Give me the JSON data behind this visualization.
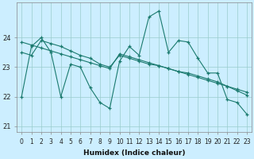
{
  "xlabel": "Humidex (Indice chaleur)",
  "bg_color": "#cceeff",
  "line_color": "#1a7a6e",
  "grid_color": "#99cccc",
  "x_values": [
    0,
    1,
    2,
    3,
    4,
    5,
    6,
    7,
    8,
    9,
    10,
    11,
    12,
    13,
    14,
    15,
    16,
    17,
    18,
    19,
    20,
    21,
    22,
    23
  ],
  "series1": [
    22.0,
    23.7,
    24.0,
    23.5,
    22.0,
    23.1,
    23.0,
    22.3,
    21.8,
    21.6,
    23.2,
    23.7,
    23.4,
    24.7,
    24.9,
    23.5,
    23.9,
    23.85,
    23.3,
    22.8,
    22.8,
    21.9,
    21.8,
    21.4
  ],
  "series2": [
    23.85,
    23.75,
    23.65,
    23.55,
    23.45,
    23.35,
    23.25,
    23.15,
    23.05,
    22.95,
    23.45,
    23.35,
    23.25,
    23.15,
    23.05,
    22.95,
    22.85,
    22.75,
    22.65,
    22.55,
    22.45,
    22.35,
    22.25,
    22.15
  ],
  "series3": [
    23.5,
    23.4,
    23.9,
    23.8,
    23.7,
    23.55,
    23.4,
    23.3,
    23.1,
    23.0,
    23.4,
    23.3,
    23.2,
    23.1,
    23.05,
    22.95,
    22.85,
    22.8,
    22.7,
    22.6,
    22.5,
    22.35,
    22.2,
    22.05
  ],
  "ylim": [
    20.8,
    25.2
  ],
  "yticks": [
    21,
    22,
    23,
    24
  ],
  "xticks": [
    0,
    1,
    2,
    3,
    4,
    5,
    6,
    7,
    8,
    9,
    10,
    11,
    12,
    13,
    14,
    15,
    16,
    17,
    18,
    19,
    20,
    21,
    22,
    23
  ],
  "xlabel_fontsize": 6.5,
  "tick_fontsize": 5.5,
  "ytick_fontsize": 6.0
}
